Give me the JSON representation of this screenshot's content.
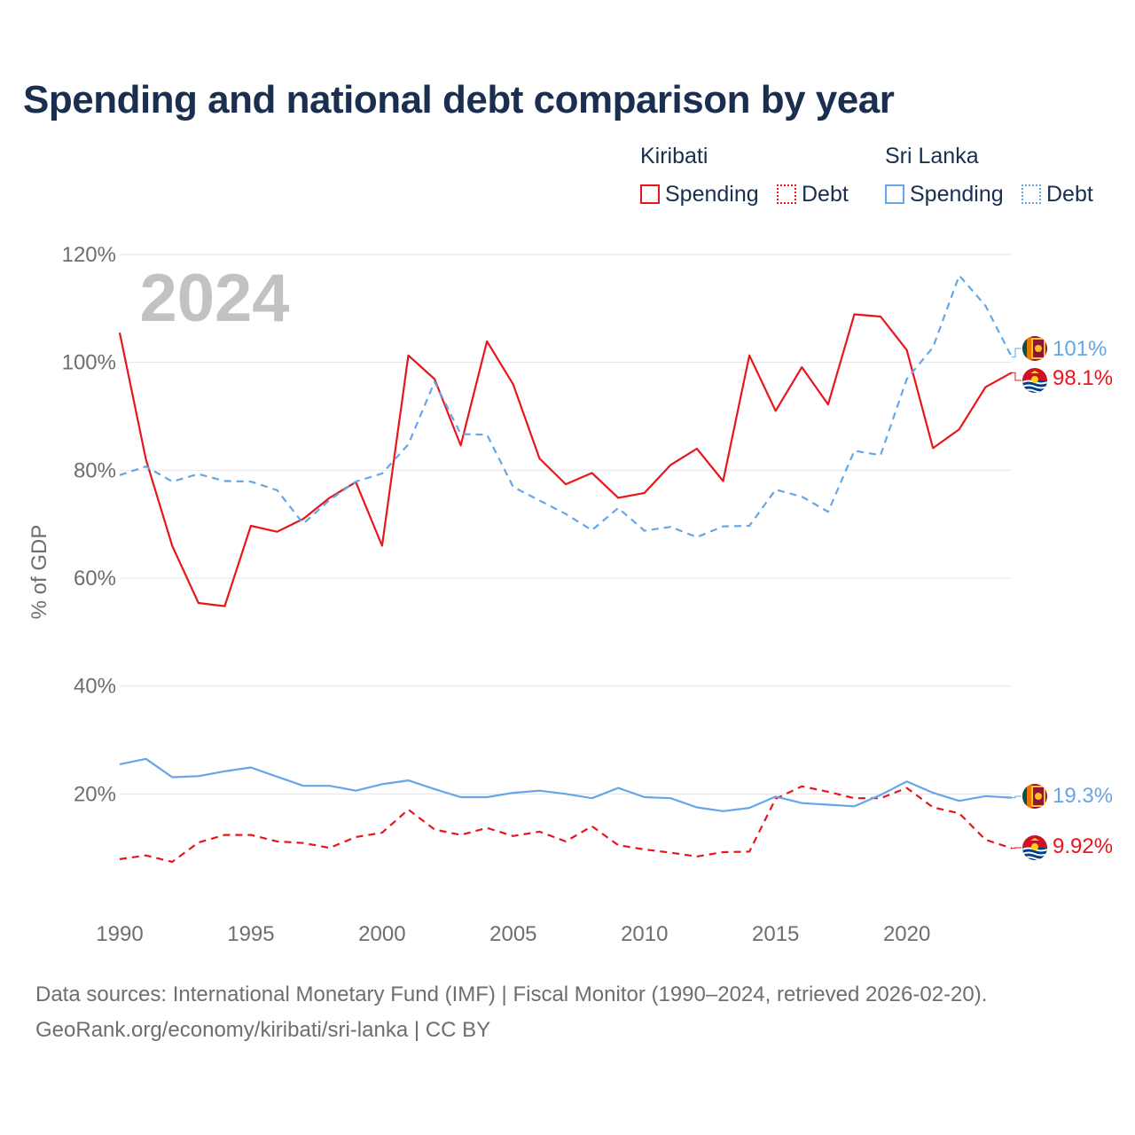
{
  "title": "Spending and national debt comparison by year",
  "legend": {
    "kiribati": {
      "country": "Kiribati",
      "spending": "Spending",
      "debt": "Debt"
    },
    "sri_lanka": {
      "country": "Sri Lanka",
      "spending": "Spending",
      "debt": "Debt"
    }
  },
  "colors": {
    "kiribati": "#e8161b",
    "sri_lanka": "#64a6e8",
    "grid": "#e6e6e6",
    "axis_text": "#6e6e6e",
    "year_watermark": "#c2c2c2"
  },
  "chart_data": {
    "type": "line",
    "title": "Spending and national debt comparison by year",
    "ylabel": "% of GDP",
    "xlabel": "",
    "year_label": "2024",
    "xlim": [
      1990,
      2024
    ],
    "ylim": [
      0,
      120
    ],
    "x_ticks": [
      1990,
      1995,
      2000,
      2005,
      2010,
      2015,
      2020
    ],
    "x_tick_labels": [
      "1990",
      "1995",
      "2000",
      "2005",
      "2010",
      "2015",
      "2020"
    ],
    "y_ticks": [
      20,
      40,
      60,
      80,
      100,
      120
    ],
    "y_tick_labels": [
      "20%",
      "40%",
      "60%",
      "80%",
      "100%",
      "120%"
    ],
    "x": [
      1990,
      1991,
      1992,
      1993,
      1994,
      1995,
      1996,
      1997,
      1998,
      1999,
      2000,
      2001,
      2002,
      2003,
      2004,
      2005,
      2006,
      2007,
      2008,
      2009,
      2010,
      2011,
      2012,
      2013,
      2014,
      2015,
      2016,
      2017,
      2018,
      2019,
      2020,
      2021,
      2022,
      2023,
      2024
    ],
    "series": [
      {
        "name": "Kiribati Spending",
        "country": "Kiribati",
        "color": "#e8161b",
        "dash": "solid",
        "end_label": "98.1%",
        "values": [
          105.5,
          82,
          66,
          55.4,
          54.8,
          69.7,
          68.6,
          71,
          74.9,
          77.8,
          66,
          101.3,
          96.9,
          84.6,
          103.9,
          95.9,
          82.2,
          77.4,
          79.5,
          74.9,
          75.8,
          81,
          84,
          78,
          101.3,
          91,
          99.1,
          92.2,
          108.9,
          108.5,
          102.3,
          84.1,
          87.6,
          95.4,
          98.1
        ]
      },
      {
        "name": "Kiribati Debt",
        "country": "Kiribati",
        "color": "#e8161b",
        "dash": "dashed",
        "end_label": "9.92%",
        "values": [
          7.9,
          8.6,
          7.4,
          11,
          12.4,
          12.4,
          11.2,
          10.9,
          10,
          12,
          12.8,
          17.1,
          13.4,
          12.4,
          13.7,
          12.2,
          13,
          11.2,
          14,
          10.5,
          9.7,
          9.1,
          8.4,
          9.2,
          9.3,
          19.1,
          21.4,
          20.4,
          19.2,
          19.2,
          21.1,
          17.5,
          16.4,
          11.5,
          9.92
        ]
      },
      {
        "name": "Sri Lanka Spending",
        "country": "Sri Lanka",
        "color": "#64a6e8",
        "dash": "solid",
        "end_label": "19.3%",
        "values": [
          25.5,
          26.5,
          23.1,
          23.3,
          24.2,
          24.9,
          23.2,
          21.5,
          21.5,
          20.6,
          21.8,
          22.5,
          20.9,
          19.4,
          19.4,
          20.2,
          20.6,
          20,
          19.2,
          21.1,
          19.4,
          19.2,
          17.5,
          16.8,
          17.4,
          19.5,
          18.3,
          18,
          17.7,
          19.8,
          22.3,
          20.2,
          18.7,
          19.6,
          19.3
        ]
      },
      {
        "name": "Sri Lanka Debt",
        "country": "Sri Lanka",
        "color": "#64a6e8",
        "dash": "dashed",
        "end_label": "101%",
        "values": [
          79.1,
          80.7,
          77.9,
          79.3,
          78,
          77.9,
          76.3,
          70.1,
          74.5,
          77.9,
          79.4,
          84.8,
          96.4,
          86.7,
          86.6,
          76.9,
          74.4,
          71.9,
          68.9,
          73,
          68.8,
          69.5,
          67.6,
          69.6,
          69.7,
          76.4,
          75.1,
          72.3,
          83.6,
          82.8,
          96.9,
          102.8,
          116.1,
          110.5,
          101
        ]
      }
    ]
  },
  "footer": {
    "line1": "Data sources: International Monetary Fund (IMF) | Fiscal Monitor (1990–2024, retrieved 2026-02-20).",
    "line2": "GeoRank.org/economy/kiribati/sri-lanka | CC BY"
  }
}
